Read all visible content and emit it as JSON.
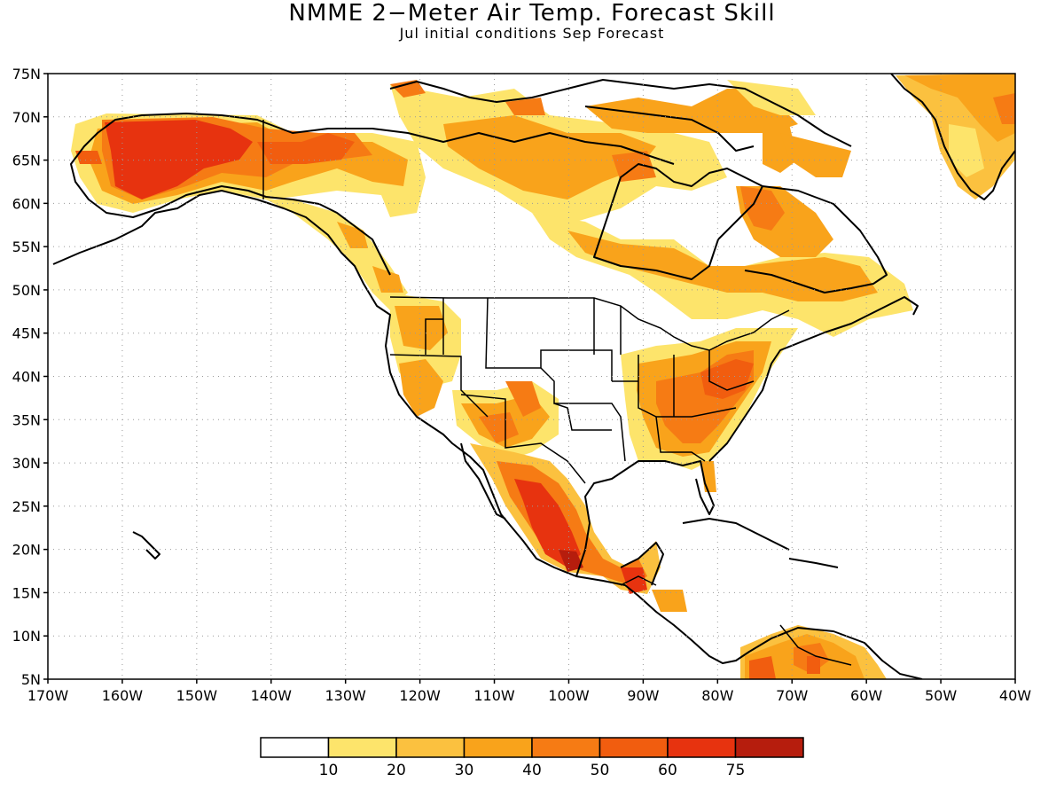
{
  "title": "NMME 2−Meter Air Temp. Forecast Skill",
  "subtitle": "Jul initial conditions   Sep Forecast",
  "map": {
    "lon_range": [
      -170,
      -40
    ],
    "lat_range": [
      5,
      75
    ],
    "lat_ticks": [
      {
        "value": 75,
        "label": "75N"
      },
      {
        "value": 70,
        "label": "70N"
      },
      {
        "value": 65,
        "label": "65N"
      },
      {
        "value": 60,
        "label": "60N"
      },
      {
        "value": 55,
        "label": "55N"
      },
      {
        "value": 50,
        "label": "50N"
      },
      {
        "value": 45,
        "label": "45N"
      },
      {
        "value": 40,
        "label": "40N"
      },
      {
        "value": 35,
        "label": "35N"
      },
      {
        "value": 30,
        "label": "30N"
      },
      {
        "value": 25,
        "label": "25N"
      },
      {
        "value": 20,
        "label": "20N"
      },
      {
        "value": 15,
        "label": "15N"
      },
      {
        "value": 10,
        "label": "10N"
      },
      {
        "value": 5,
        "label": "5N"
      }
    ],
    "lon_ticks": [
      {
        "value": -170,
        "label": "170W"
      },
      {
        "value": -160,
        "label": "160W"
      },
      {
        "value": -150,
        "label": "150W"
      },
      {
        "value": -140,
        "label": "140W"
      },
      {
        "value": -130,
        "label": "130W"
      },
      {
        "value": -120,
        "label": "120W"
      },
      {
        "value": -110,
        "label": "110W"
      },
      {
        "value": -100,
        "label": "100W"
      },
      {
        "value": -90,
        "label": "90W"
      },
      {
        "value": -80,
        "label": "80W"
      },
      {
        "value": -70,
        "label": "70W"
      },
      {
        "value": -60,
        "label": "60W"
      },
      {
        "value": -50,
        "label": "50W"
      },
      {
        "value": -40,
        "label": "40W"
      }
    ],
    "grid": "dotted"
  },
  "colorbar": {
    "labels": [
      "10",
      "20",
      "30",
      "40",
      "50",
      "60",
      "75"
    ],
    "colors": [
      "#ffffff",
      "#fde46b",
      "#fbc13f",
      "#f9a31b",
      "#f67b14",
      "#f15d0f",
      "#e7330f",
      "#b61d0d"
    ]
  }
}
